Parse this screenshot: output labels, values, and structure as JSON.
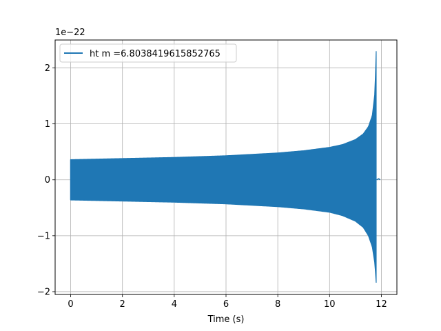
{
  "chart_data": {
    "type": "line",
    "title": "",
    "xlabel": "Time (s)",
    "ylabel": "",
    "y_offset_label": "1e−22",
    "xlim": [
      -0.6,
      12.6
    ],
    "ylim": [
      -2.05,
      2.5
    ],
    "y_scale_exponent": -22,
    "grid": true,
    "legend_position": "top-left",
    "x_ticks": [
      0,
      2,
      4,
      6,
      8,
      10,
      12
    ],
    "x_tick_labels": [
      "0",
      "2",
      "4",
      "6",
      "8",
      "10",
      "12"
    ],
    "y_ticks": [
      -2,
      -1,
      0,
      1,
      2
    ],
    "y_tick_labels": [
      "−2",
      "−1",
      "0",
      "1",
      "2"
    ],
    "series": [
      {
        "name": "ht m =6.8038419615852765",
        "color": "#1f77b4",
        "style": "oscillating-chirp",
        "x_start": 0,
        "x_merger": 11.82,
        "x_end": 11.95,
        "envelope_upper": [
          [
            0,
            0.36
          ],
          [
            2,
            0.38
          ],
          [
            4,
            0.4
          ],
          [
            6,
            0.43
          ],
          [
            8,
            0.48
          ],
          [
            9,
            0.52
          ],
          [
            10,
            0.58
          ],
          [
            10.5,
            0.63
          ],
          [
            11,
            0.72
          ],
          [
            11.3,
            0.82
          ],
          [
            11.5,
            0.95
          ],
          [
            11.65,
            1.15
          ],
          [
            11.75,
            1.55
          ],
          [
            11.8,
            2.3
          ]
        ],
        "envelope_lower": [
          [
            0,
            -0.36
          ],
          [
            2,
            -0.38
          ],
          [
            4,
            -0.4
          ],
          [
            6,
            -0.43
          ],
          [
            8,
            -0.48
          ],
          [
            9,
            -0.52
          ],
          [
            10,
            -0.58
          ],
          [
            10.5,
            -0.64
          ],
          [
            11,
            -0.74
          ],
          [
            11.3,
            -0.85
          ],
          [
            11.5,
            -1.0
          ],
          [
            11.65,
            -1.2
          ],
          [
            11.75,
            -1.5
          ],
          [
            11.8,
            -1.84
          ]
        ],
        "ringdown": [
          [
            11.82,
            0.0
          ],
          [
            11.9,
            0.02
          ],
          [
            11.95,
            0.0
          ]
        ]
      }
    ]
  }
}
